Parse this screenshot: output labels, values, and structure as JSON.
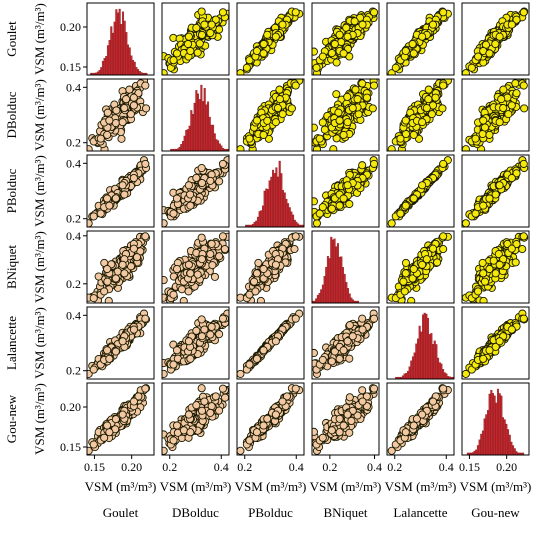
{
  "chart_data": {
    "type": "scatter",
    "variables": [
      "Goulet",
      "DBolduc",
      "PBolduc",
      "BNiquet",
      "Lalancette",
      "Gou-new"
    ],
    "axis_label": "VSM (m³/m³)",
    "ranges": {
      "Goulet": [
        0.14,
        0.23
      ],
      "DBolduc": [
        0.17,
        0.43
      ],
      "PBolduc": [
        0.17,
        0.43
      ],
      "BNiquet": [
        0.12,
        0.42
      ],
      "Lalancette": [
        0.17,
        0.43
      ],
      "Gou-new": [
        0.14,
        0.23
      ]
    },
    "y_ticks": [
      [
        0.15,
        0.2
      ],
      [
        0.2,
        0.4
      ],
      [
        0.2,
        0.4
      ],
      [
        0.2,
        0.4
      ],
      [
        0.2,
        0.4
      ],
      [
        0.15,
        0.2
      ]
    ],
    "x_ticks": [
      [
        0.15,
        0.2
      ],
      [
        0.2,
        0.4
      ],
      [
        0.2,
        0.4
      ],
      [
        0.2,
        0.4
      ],
      [
        0.2,
        0.4
      ],
      [
        0.15,
        0.2
      ]
    ],
    "point_colors": {
      "upper": "#f5e90c",
      "lower": "#f3c9a4",
      "edge": "#1a1a00"
    },
    "histogram": {
      "color": "#c1272d",
      "bins": 40,
      "centers": [
        {
          "variable": "Goulet",
          "center": 0.183,
          "spread": 0.012
        },
        {
          "variable": "DBolduc",
          "center": 0.32,
          "spread": 0.036
        },
        {
          "variable": "PBolduc",
          "center": 0.32,
          "spread": 0.036
        },
        {
          "variable": "BNiquet",
          "center": 0.22,
          "spread": 0.035
        },
        {
          "variable": "Lalancette",
          "center": 0.32,
          "spread": 0.036
        },
        {
          "variable": "Gou-new",
          "center": 0.185,
          "spread": 0.012
        }
      ]
    }
  }
}
